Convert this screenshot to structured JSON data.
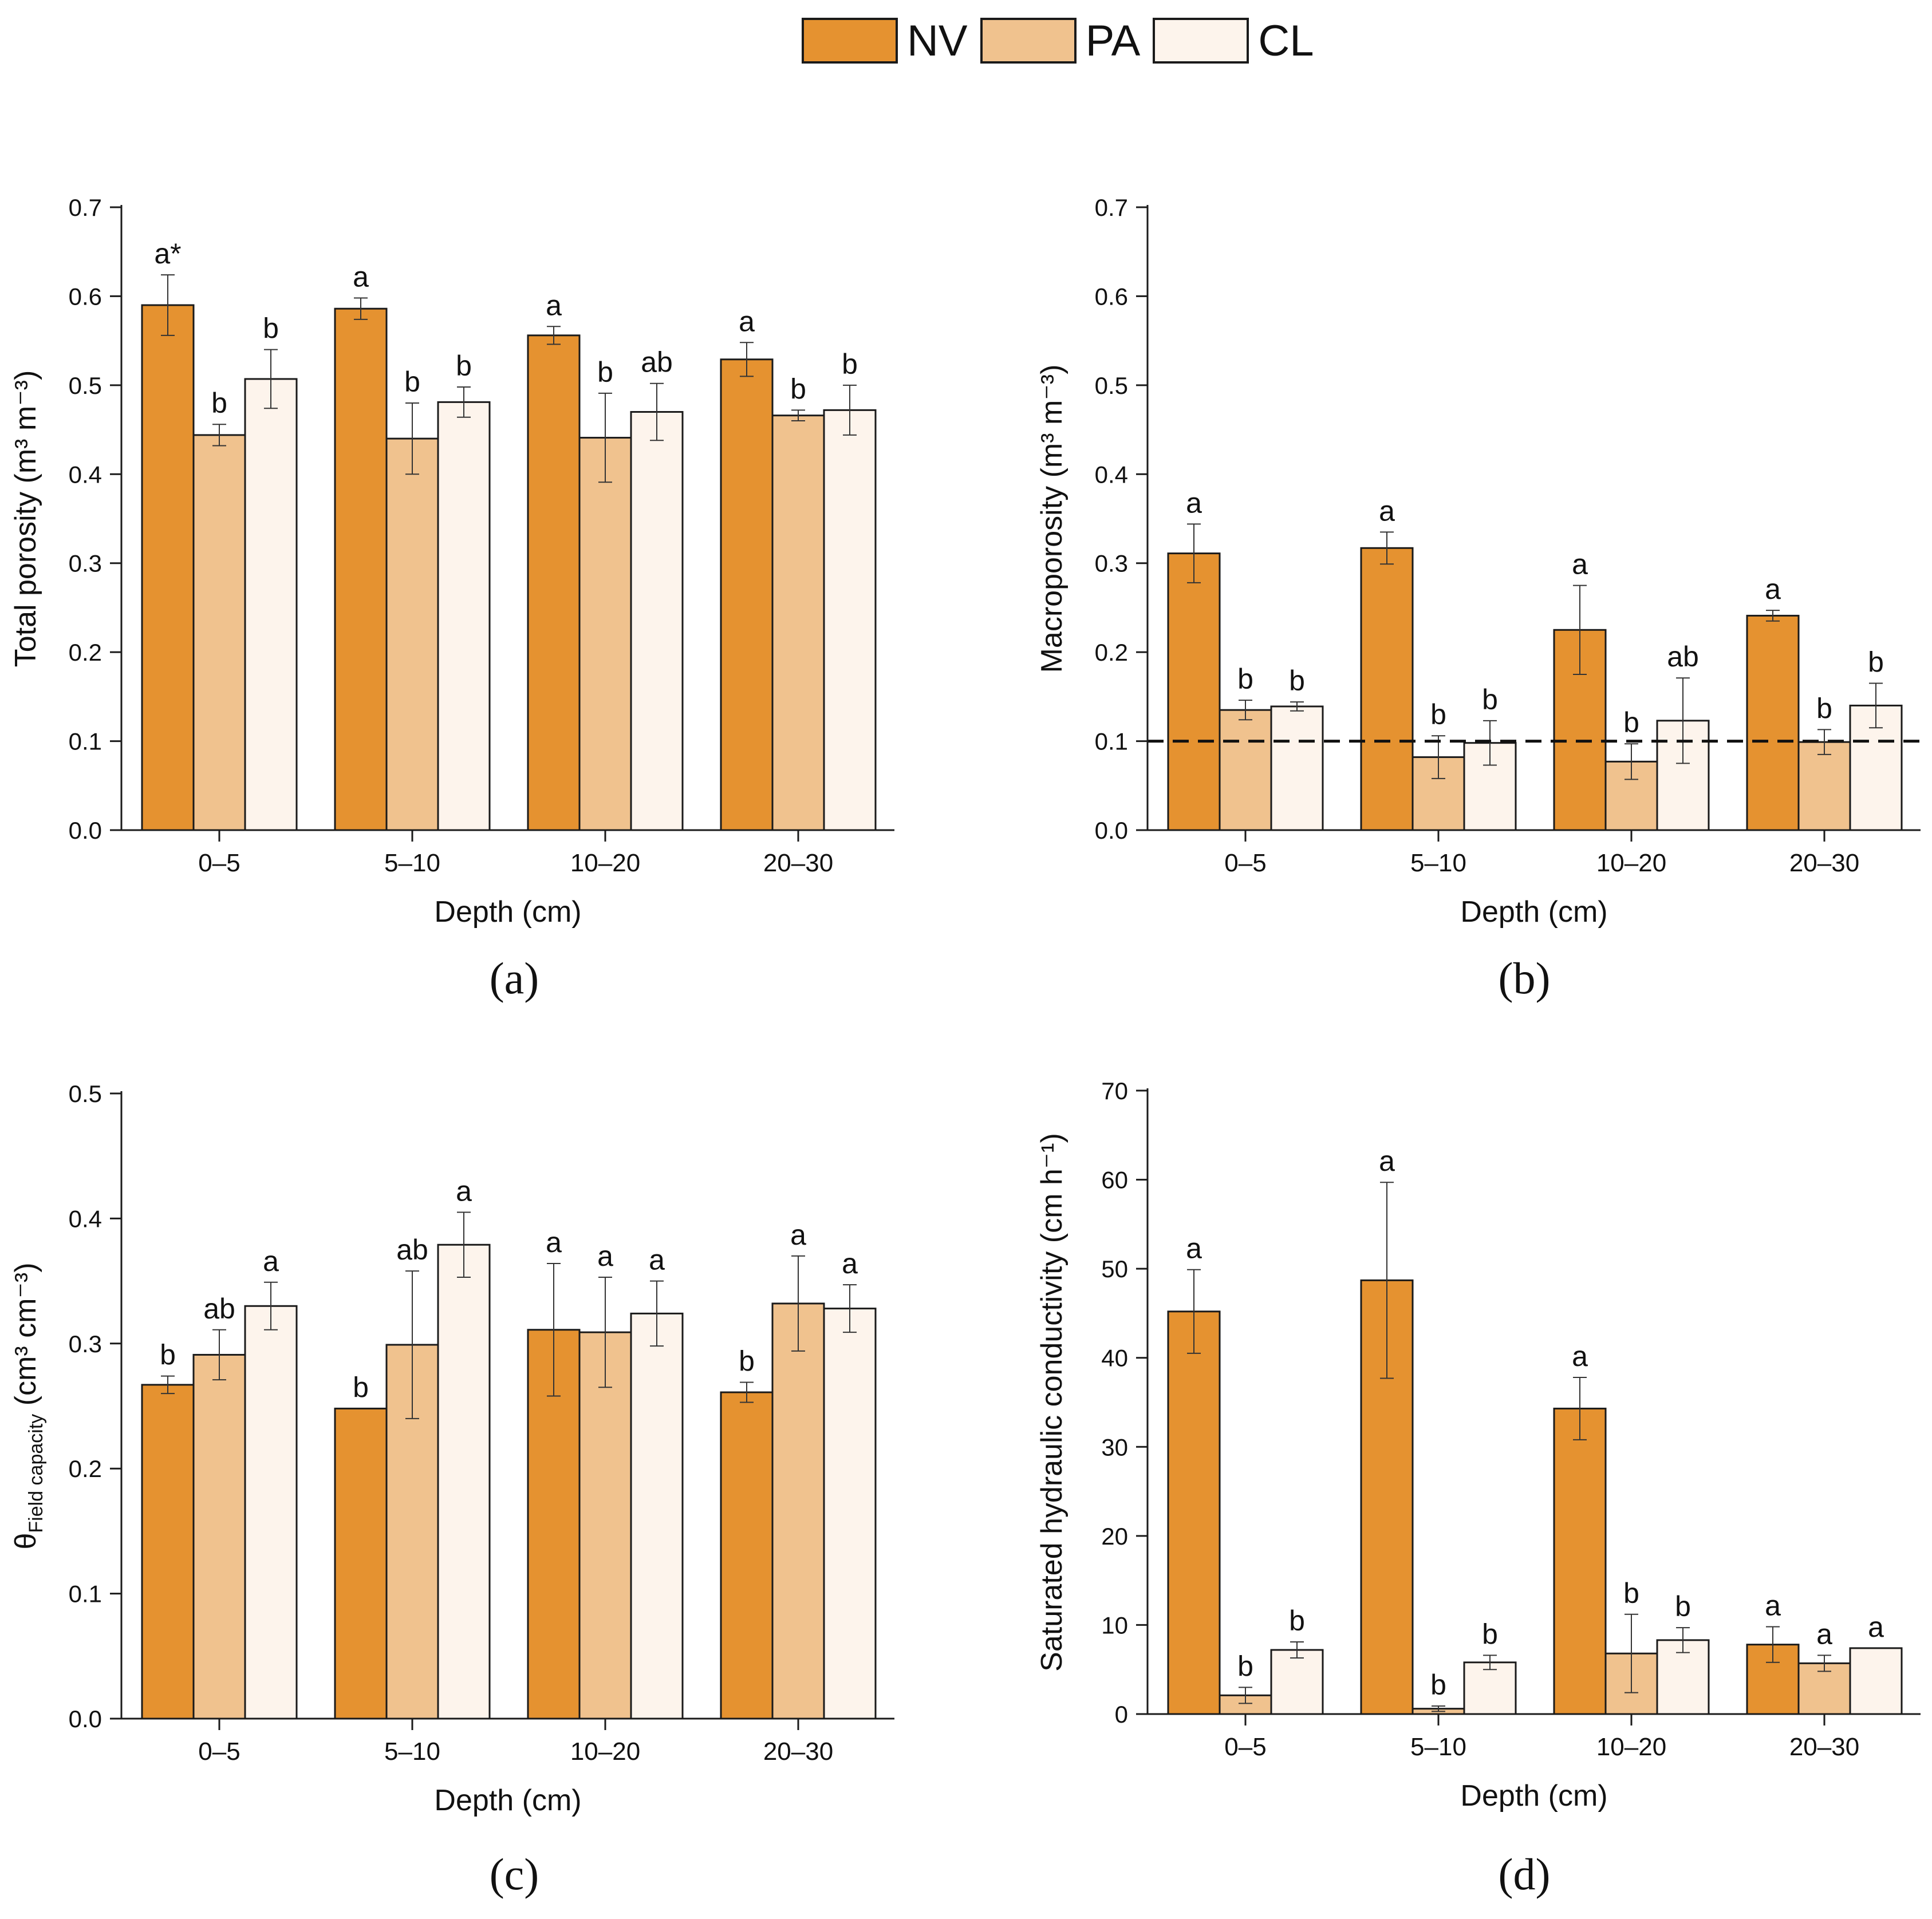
{
  "legend": {
    "items": [
      {
        "label": "NV",
        "color": "#E59230"
      },
      {
        "label": "PA",
        "color": "#F0C28E"
      },
      {
        "label": "CL",
        "color": "#FDF4EC"
      }
    ]
  },
  "chart_data": [
    {
      "type": "bar",
      "panel_label": "(a)",
      "xlabel": "Depth (cm)",
      "ylabel": "Total porosity (m³ m⁻³)",
      "ylim": [
        0,
        0.7
      ],
      "yticks": [
        "0.0",
        "0.1",
        "0.2",
        "0.3",
        "0.4",
        "0.5",
        "0.6",
        "0.7"
      ],
      "yticks_values": [
        0,
        0.1,
        0.2,
        0.3,
        0.4,
        0.5,
        0.6,
        0.7
      ],
      "categories": [
        "0–5",
        "5–10",
        "10–20",
        "20–30"
      ],
      "series": [
        {
          "name": "NV",
          "values": [
            0.59,
            0.586,
            0.556,
            0.529
          ],
          "errors": [
            0.034,
            0.012,
            0.01,
            0.019
          ],
          "letters": [
            "a*",
            "a",
            "a",
            "a"
          ]
        },
        {
          "name": "PA",
          "values": [
            0.444,
            0.44,
            0.441,
            0.466
          ],
          "errors": [
            0.012,
            0.04,
            0.05,
            0.006
          ],
          "letters": [
            "b",
            "b",
            "b",
            "b"
          ]
        },
        {
          "name": "CL",
          "values": [
            0.507,
            0.481,
            0.47,
            0.472
          ],
          "errors": [
            0.033,
            0.017,
            0.032,
            0.028
          ],
          "letters": [
            "b",
            "b",
            "ab",
            "b"
          ]
        }
      ]
    },
    {
      "type": "bar",
      "panel_label": "(b)",
      "xlabel": "Depth (cm)",
      "ylabel": "Macroporosity (m³ m⁻³)",
      "ylim": [
        0,
        0.7
      ],
      "yticks": [
        "0.0",
        "0.1",
        "0.2",
        "0.3",
        "0.4",
        "0.5",
        "0.6",
        "0.7"
      ],
      "yticks_values": [
        0,
        0.1,
        0.2,
        0.3,
        0.4,
        0.5,
        0.6,
        0.7
      ],
      "reference_line": 0.1,
      "categories": [
        "0–5",
        "5–10",
        "10–20",
        "20–30"
      ],
      "series": [
        {
          "name": "NV",
          "values": [
            0.311,
            0.317,
            0.225,
            0.241
          ],
          "errors": [
            0.033,
            0.018,
            0.05,
            0.006
          ],
          "letters": [
            "a",
            "a",
            "a",
            "a"
          ]
        },
        {
          "name": "PA",
          "values": [
            0.135,
            0.082,
            0.077,
            0.099
          ],
          "errors": [
            0.011,
            0.024,
            0.02,
            0.014
          ],
          "letters": [
            "b",
            "b",
            "b",
            "b"
          ]
        },
        {
          "name": "CL",
          "values": [
            0.139,
            0.098,
            0.123,
            0.14
          ],
          "errors": [
            0.005,
            0.025,
            0.048,
            0.025
          ],
          "letters": [
            "b",
            "b",
            "ab",
            "b"
          ]
        }
      ]
    },
    {
      "type": "bar",
      "panel_label": "(c)",
      "xlabel": "Depth (cm)",
      "ylabel_main": "θ",
      "ylabel_sub": "Field capacity",
      "ylabel_rest": " (cm³ cm⁻³)",
      "ylim": [
        0,
        0.5
      ],
      "yticks": [
        "0.0",
        "0.1",
        "0.2",
        "0.3",
        "0.4",
        "0.5"
      ],
      "yticks_values": [
        0,
        0.1,
        0.2,
        0.3,
        0.4,
        0.5
      ],
      "categories": [
        "0–5",
        "5–10",
        "10–20",
        "20–30"
      ],
      "series": [
        {
          "name": "NV",
          "values": [
            0.267,
            0.248,
            0.311,
            0.261
          ],
          "errors": [
            0.007,
            0,
            0.053,
            0.008
          ],
          "letters": [
            "b",
            "b",
            "a",
            "b"
          ]
        },
        {
          "name": "PA",
          "values": [
            0.291,
            0.299,
            0.309,
            0.332
          ],
          "errors": [
            0.02,
            0.059,
            0.044,
            0.038
          ],
          "letters": [
            "ab",
            "ab",
            "a",
            "a"
          ]
        },
        {
          "name": "CL",
          "values": [
            0.33,
            0.379,
            0.324,
            0.328
          ],
          "errors": [
            0.019,
            0.026,
            0.026,
            0.019
          ],
          "letters": [
            "a",
            "a",
            "a",
            "a"
          ]
        }
      ]
    },
    {
      "type": "bar",
      "panel_label": "(d)",
      "xlabel": "Depth (cm)",
      "ylabel": "Saturated hydraulic conductivity (cm h⁻¹)",
      "ylim": [
        0,
        70
      ],
      "yticks": [
        "0",
        "10",
        "20",
        "30",
        "40",
        "50",
        "60",
        "70"
      ],
      "yticks_values": [
        0,
        10,
        20,
        30,
        40,
        50,
        60,
        70
      ],
      "categories": [
        "0–5",
        "5–10",
        "10–20",
        "20–30"
      ],
      "series": [
        {
          "name": "NV",
          "values": [
            45.2,
            48.7,
            34.3,
            7.8
          ],
          "errors": [
            4.7,
            11,
            3.5,
            2
          ],
          "letters": [
            "a",
            "a",
            "a",
            "a"
          ]
        },
        {
          "name": "PA",
          "values": [
            2.1,
            0.6,
            6.8,
            5.7
          ],
          "errors": [
            0.9,
            0.3,
            4.4,
            0.9
          ],
          "letters": [
            "b",
            "b",
            "b",
            "a"
          ]
        },
        {
          "name": "CL",
          "values": [
            7.2,
            5.8,
            8.3,
            7.4
          ],
          "errors": [
            0.9,
            0.8,
            1.4,
            0
          ],
          "letters": [
            "b",
            "b",
            "b",
            "a"
          ]
        }
      ]
    }
  ]
}
